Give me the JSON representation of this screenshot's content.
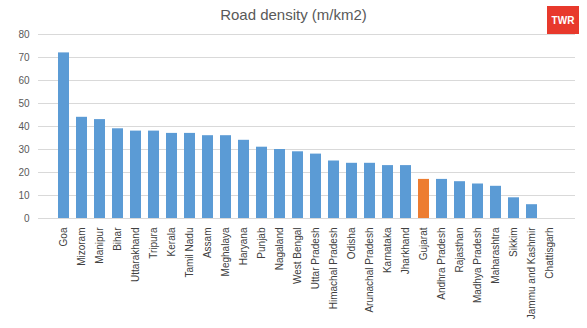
{
  "chart_data": {
    "type": "bar",
    "title": "Road density (m/km2)",
    "logo": "TWR",
    "categories": [
      "Goa",
      "Mizoram",
      "Manipur",
      "Bihar",
      "Uttarakhand",
      "Tripura",
      "Kerala",
      "Tamil Nadu",
      "Assam",
      "Meghalaya",
      "Haryana",
      "Punjab",
      "Nagaland",
      "West Bengal",
      "Uttar Pradesh",
      "Himachal Pradesh",
      "Odisha",
      "Arunachal Pradesh",
      "Karnataka",
      "Jharkhand",
      "Gujarat",
      "Andhra Pradesh",
      "Rajasthan",
      "Madhya Pradesh",
      "Maharashtra",
      "Sikkim",
      "Jammu and Kashmir",
      "Chattisgarh"
    ],
    "values": [
      72,
      44,
      43,
      39,
      38,
      38,
      37,
      37,
      36,
      36,
      34,
      31,
      30,
      29,
      28,
      25,
      24,
      24,
      23,
      23,
      17,
      17,
      16,
      15,
      14,
      9,
      6,
      0
    ],
    "colors": [
      "#5b9bd5",
      "#5b9bd5",
      "#5b9bd5",
      "#5b9bd5",
      "#5b9bd5",
      "#5b9bd5",
      "#5b9bd5",
      "#5b9bd5",
      "#5b9bd5",
      "#5b9bd5",
      "#5b9bd5",
      "#5b9bd5",
      "#5b9bd5",
      "#5b9bd5",
      "#5b9bd5",
      "#5b9bd5",
      "#5b9bd5",
      "#5b9bd5",
      "#5b9bd5",
      "#5b9bd5",
      "#ed7d31",
      "#5b9bd5",
      "#5b9bd5",
      "#5b9bd5",
      "#5b9bd5",
      "#5b9bd5",
      "#5b9bd5",
      "#5b9bd5"
    ],
    "ylim": [
      0,
      80
    ],
    "yticks": [
      0,
      10,
      20,
      30,
      40,
      50,
      60,
      70,
      80
    ],
    "grid": true
  }
}
